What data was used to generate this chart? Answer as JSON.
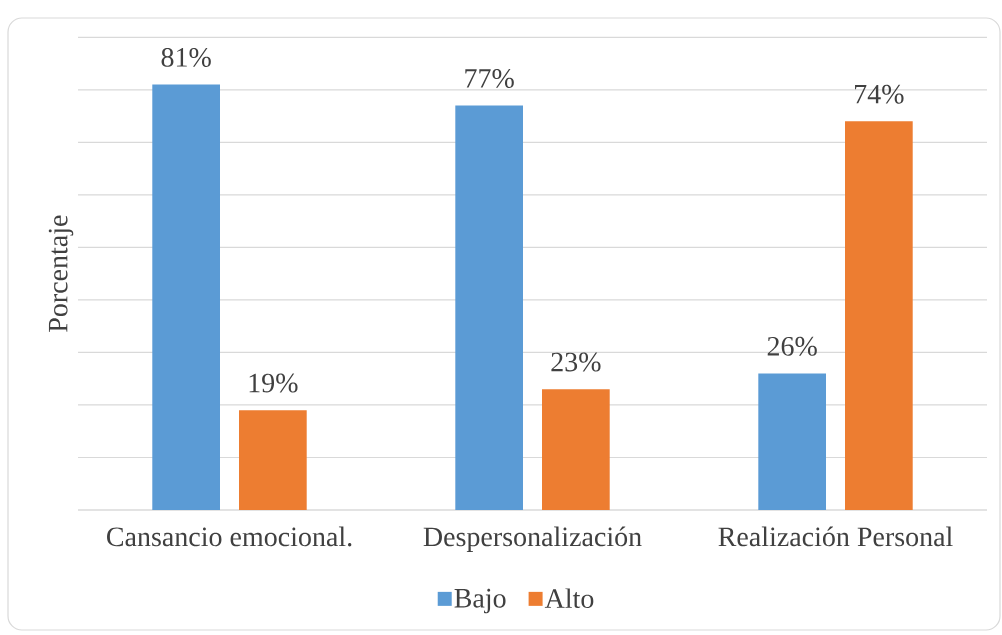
{
  "chart_data": {
    "type": "bar",
    "categories": [
      "Cansancio emocional.",
      "Despersonalización",
      "Realización Personal"
    ],
    "series": [
      {
        "name": "Bajo",
        "color": "#5b9bd5",
        "values": [
          81,
          77,
          26
        ],
        "value_labels": [
          "81%",
          "77%",
          "26%"
        ]
      },
      {
        "name": "Alto",
        "color": "#ed7d31",
        "values": [
          19,
          23,
          74
        ],
        "value_labels": [
          "19%",
          "23%",
          "74%"
        ]
      }
    ],
    "ylabel": "Porcentaje",
    "ylim": [
      0,
      90
    ],
    "yticks": [
      {
        "value": 0,
        "label": null
      },
      {
        "value": 10,
        "label": null
      },
      {
        "value": 20,
        "label": null
      },
      {
        "value": 30,
        "label": null
      },
      {
        "value": 40,
        "label": null
      },
      {
        "value": 50,
        "label": null
      },
      {
        "value": 60,
        "label": null
      },
      {
        "value": 70,
        "label": null
      },
      {
        "value": 80,
        "label": null
      },
      {
        "value": 90,
        "label": null
      }
    ],
    "grid": "y",
    "legend": "bottom",
    "tick_labels": "x"
  }
}
